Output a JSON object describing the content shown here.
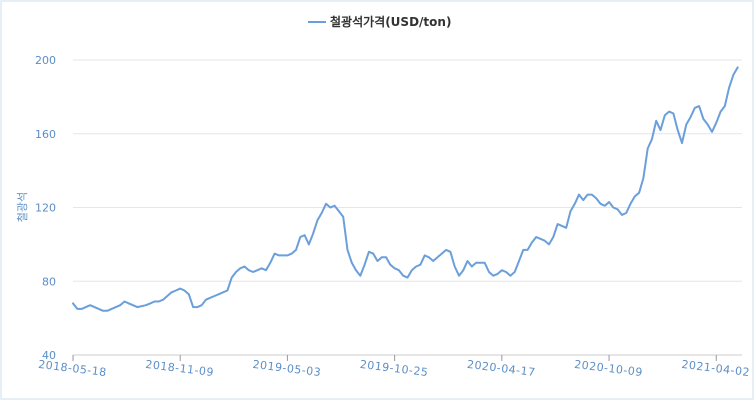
{
  "chart_data": {
    "type": "line",
    "legend": {
      "label": "철광석가격(USD/ton)",
      "position": "top-center"
    },
    "ylabel": "철광석",
    "xlabel": "",
    "ylim": [
      40,
      200
    ],
    "yticks": [
      40,
      80,
      120,
      160,
      200
    ],
    "grid": true,
    "x_tick_labels": [
      "2018-05-18",
      "2018-11-09",
      "2019-05-03",
      "2019-10-25",
      "2020-04-17",
      "2020-10-09",
      "2021-04-02"
    ],
    "x_range": [
      "2018-05-18",
      "2021-05-14"
    ],
    "colors": {
      "line": "#6a9fdb",
      "grid": "#e6e6e6",
      "tick_text": "#5b8ec6",
      "frame": "#e6eef6"
    },
    "series": [
      {
        "name": "철광석가격(USD/ton)",
        "points": [
          [
            "2018-05-18",
            68
          ],
          [
            "2018-05-25",
            65
          ],
          [
            "2018-06-01",
            65
          ],
          [
            "2018-06-15",
            67
          ],
          [
            "2018-06-29",
            65
          ],
          [
            "2018-07-06",
            64
          ],
          [
            "2018-07-13",
            64
          ],
          [
            "2018-07-20",
            65
          ],
          [
            "2018-07-27",
            66
          ],
          [
            "2018-08-03",
            67
          ],
          [
            "2018-08-10",
            69
          ],
          [
            "2018-08-17",
            68
          ],
          [
            "2018-08-24",
            67
          ],
          [
            "2018-08-31",
            66
          ],
          [
            "2018-09-14",
            67
          ],
          [
            "2018-09-21",
            68
          ],
          [
            "2018-09-28",
            69
          ],
          [
            "2018-10-05",
            69
          ],
          [
            "2018-10-12",
            70
          ],
          [
            "2018-10-19",
            72
          ],
          [
            "2018-10-26",
            74
          ],
          [
            "2018-11-02",
            75
          ],
          [
            "2018-11-09",
            76
          ],
          [
            "2018-11-16",
            75
          ],
          [
            "2018-11-23",
            73
          ],
          [
            "2018-11-30",
            66
          ],
          [
            "2018-12-07",
            66
          ],
          [
            "2018-12-14",
            67
          ],
          [
            "2018-12-21",
            70
          ],
          [
            "2018-12-28",
            71
          ],
          [
            "2019-01-04",
            72
          ],
          [
            "2019-01-11",
            73
          ],
          [
            "2019-01-18",
            74
          ],
          [
            "2019-01-25",
            75
          ],
          [
            "2019-02-01",
            82
          ],
          [
            "2019-02-08",
            85
          ],
          [
            "2019-02-15",
            87
          ],
          [
            "2019-02-22",
            88
          ],
          [
            "2019-03-01",
            86
          ],
          [
            "2019-03-08",
            85
          ],
          [
            "2019-03-15",
            86
          ],
          [
            "2019-03-22",
            87
          ],
          [
            "2019-03-29",
            86
          ],
          [
            "2019-04-05",
            90
          ],
          [
            "2019-04-12",
            95
          ],
          [
            "2019-04-19",
            94
          ],
          [
            "2019-04-26",
            94
          ],
          [
            "2019-05-03",
            94
          ],
          [
            "2019-05-10",
            95
          ],
          [
            "2019-05-17",
            97
          ],
          [
            "2019-05-24",
            104
          ],
          [
            "2019-05-31",
            105
          ],
          [
            "2019-06-07",
            100
          ],
          [
            "2019-06-14",
            106
          ],
          [
            "2019-06-21",
            113
          ],
          [
            "2019-06-28",
            117
          ],
          [
            "2019-07-05",
            122
          ],
          [
            "2019-07-12",
            120
          ],
          [
            "2019-07-19",
            121
          ],
          [
            "2019-07-26",
            118
          ],
          [
            "2019-08-02",
            115
          ],
          [
            "2019-08-09",
            97
          ],
          [
            "2019-08-16",
            90
          ],
          [
            "2019-08-23",
            86
          ],
          [
            "2019-08-30",
            83
          ],
          [
            "2019-09-06",
            89
          ],
          [
            "2019-09-13",
            96
          ],
          [
            "2019-09-20",
            95
          ],
          [
            "2019-09-27",
            91
          ],
          [
            "2019-10-04",
            93
          ],
          [
            "2019-10-11",
            93
          ],
          [
            "2019-10-18",
            89
          ],
          [
            "2019-10-25",
            87
          ],
          [
            "2019-11-01",
            86
          ],
          [
            "2019-11-08",
            83
          ],
          [
            "2019-11-15",
            82
          ],
          [
            "2019-11-22",
            86
          ],
          [
            "2019-11-29",
            88
          ],
          [
            "2019-12-06",
            89
          ],
          [
            "2019-12-13",
            94
          ],
          [
            "2019-12-20",
            93
          ],
          [
            "2019-12-27",
            91
          ],
          [
            "2020-01-03",
            93
          ],
          [
            "2020-01-10",
            95
          ],
          [
            "2020-01-17",
            97
          ],
          [
            "2020-01-24",
            96
          ],
          [
            "2020-01-31",
            88
          ],
          [
            "2020-02-07",
            83
          ],
          [
            "2020-02-14",
            86
          ],
          [
            "2020-02-21",
            91
          ],
          [
            "2020-02-28",
            88
          ],
          [
            "2020-03-06",
            90
          ],
          [
            "2020-03-13",
            90
          ],
          [
            "2020-03-20",
            90
          ],
          [
            "2020-03-27",
            85
          ],
          [
            "2020-04-03",
            83
          ],
          [
            "2020-04-10",
            84
          ],
          [
            "2020-04-17",
            86
          ],
          [
            "2020-04-24",
            85
          ],
          [
            "2020-05-01",
            83
          ],
          [
            "2020-05-08",
            85
          ],
          [
            "2020-05-15",
            91
          ],
          [
            "2020-05-22",
            97
          ],
          [
            "2020-05-29",
            97
          ],
          [
            "2020-06-05",
            101
          ],
          [
            "2020-06-12",
            104
          ],
          [
            "2020-06-19",
            103
          ],
          [
            "2020-06-26",
            102
          ],
          [
            "2020-07-03",
            100
          ],
          [
            "2020-07-10",
            104
          ],
          [
            "2020-07-17",
            111
          ],
          [
            "2020-07-24",
            110
          ],
          [
            "2020-07-31",
            109
          ],
          [
            "2020-08-07",
            118
          ],
          [
            "2020-08-14",
            122
          ],
          [
            "2020-08-21",
            127
          ],
          [
            "2020-08-28",
            124
          ],
          [
            "2020-09-04",
            127
          ],
          [
            "2020-09-11",
            127
          ],
          [
            "2020-09-18",
            125
          ],
          [
            "2020-09-25",
            122
          ],
          [
            "2020-10-02",
            121
          ],
          [
            "2020-10-09",
            123
          ],
          [
            "2020-10-16",
            120
          ],
          [
            "2020-10-23",
            119
          ],
          [
            "2020-10-30",
            116
          ],
          [
            "2020-11-06",
            117
          ],
          [
            "2020-11-13",
            122
          ],
          [
            "2020-11-20",
            126
          ],
          [
            "2020-11-27",
            128
          ],
          [
            "2020-12-04",
            136
          ],
          [
            "2020-12-11",
            152
          ],
          [
            "2020-12-18",
            157
          ],
          [
            "2020-12-25",
            167
          ],
          [
            "2021-01-01",
            162
          ],
          [
            "2021-01-08",
            170
          ],
          [
            "2021-01-15",
            172
          ],
          [
            "2021-01-22",
            171
          ],
          [
            "2021-01-29",
            162
          ],
          [
            "2021-02-05",
            155
          ],
          [
            "2021-02-12",
            165
          ],
          [
            "2021-02-19",
            169
          ],
          [
            "2021-02-26",
            174
          ],
          [
            "2021-03-05",
            175
          ],
          [
            "2021-03-12",
            168
          ],
          [
            "2021-03-19",
            165
          ],
          [
            "2021-03-26",
            161
          ],
          [
            "2021-04-02",
            166
          ],
          [
            "2021-04-09",
            172
          ],
          [
            "2021-04-16",
            175
          ],
          [
            "2021-04-23",
            185
          ],
          [
            "2021-04-30",
            192
          ],
          [
            "2021-05-07",
            196
          ]
        ]
      }
    ]
  }
}
